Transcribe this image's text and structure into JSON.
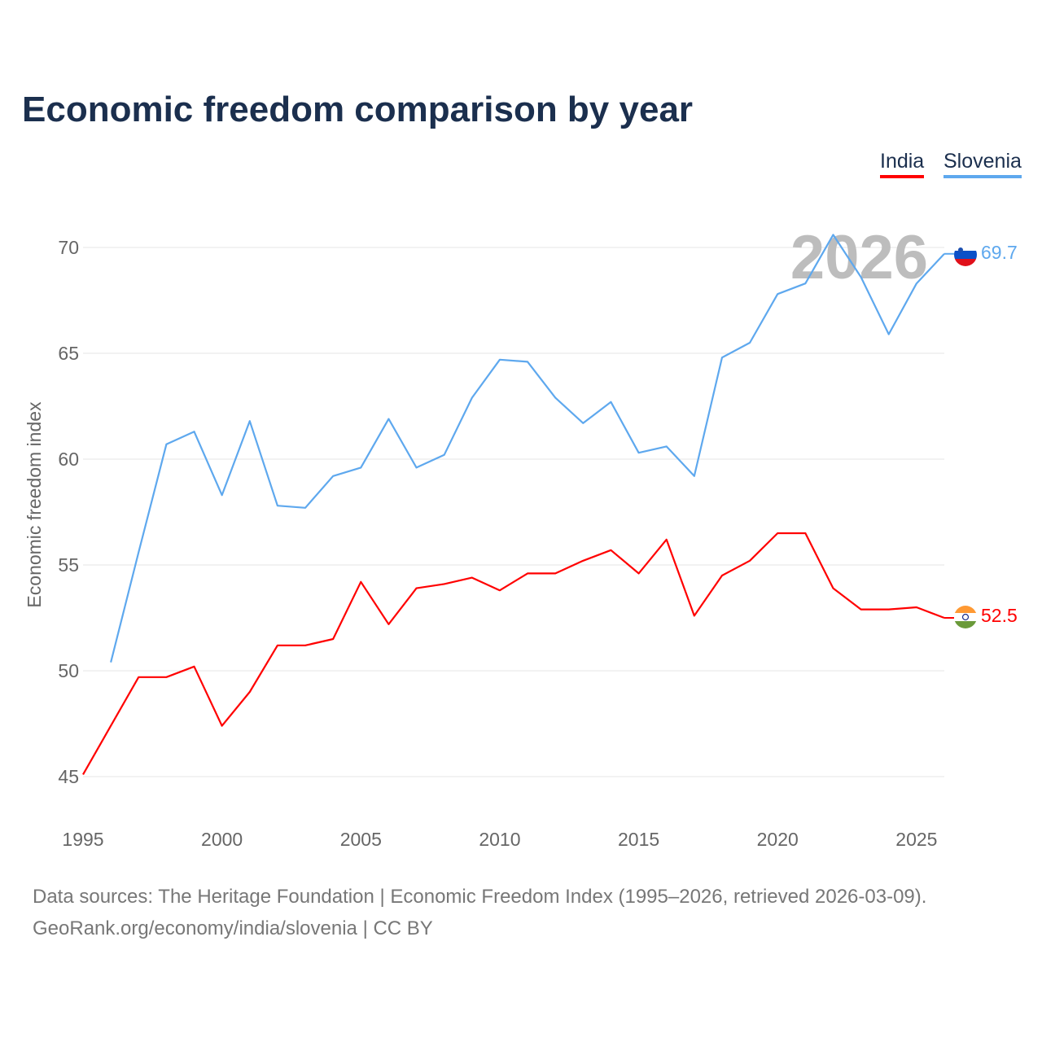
{
  "title": "Economic freedom comparison by year",
  "footer": {
    "line1": "Data sources: The Heritage Foundation | Economic Freedom Index (1995–2026, retrieved 2026-03-09).",
    "line2": "GeoRank.org/economy/india/slovenia | CC BY"
  },
  "chart_data": {
    "type": "line",
    "title": "Economic freedom comparison by year",
    "xlabel": "",
    "ylabel": "Economic freedom index",
    "xlim": [
      1995,
      2026
    ],
    "ylim": [
      45,
      70
    ],
    "x_ticks": [
      "1995",
      "2000",
      "2005",
      "2010",
      "2015",
      "2020",
      "2025"
    ],
    "y_ticks": [
      "45",
      "50",
      "55",
      "60",
      "65",
      "70"
    ],
    "grid": true,
    "legend_position": "top-right",
    "watermark_year": "2026",
    "series": [
      {
        "name": "India",
        "color": "#ff0000",
        "end_label": "52.5",
        "x": [
          1995,
          1996,
          1997,
          1998,
          1999,
          2000,
          2001,
          2002,
          2003,
          2004,
          2005,
          2006,
          2007,
          2008,
          2009,
          2010,
          2011,
          2012,
          2013,
          2014,
          2015,
          2016,
          2017,
          2018,
          2019,
          2020,
          2021,
          2022,
          2023,
          2024,
          2025,
          2026
        ],
        "values": [
          45.1,
          47.4,
          49.7,
          49.7,
          50.2,
          47.4,
          49.0,
          51.2,
          51.2,
          51.5,
          54.2,
          52.2,
          53.9,
          54.1,
          54.4,
          53.8,
          54.6,
          54.6,
          55.2,
          55.7,
          54.6,
          56.2,
          52.6,
          54.5,
          55.2,
          56.5,
          56.5,
          53.9,
          52.9,
          52.9,
          53.0,
          52.5
        ]
      },
      {
        "name": "Slovenia",
        "color": "#5ea8ee",
        "end_label": "69.7",
        "x": [
          1996,
          1997,
          1998,
          1999,
          2000,
          2001,
          2002,
          2003,
          2004,
          2005,
          2006,
          2007,
          2008,
          2009,
          2010,
          2011,
          2012,
          2013,
          2014,
          2015,
          2016,
          2017,
          2018,
          2019,
          2020,
          2021,
          2022,
          2023,
          2024,
          2025,
          2026
        ],
        "values": [
          50.4,
          55.6,
          60.7,
          61.3,
          58.3,
          61.8,
          57.8,
          57.7,
          59.2,
          59.6,
          61.9,
          59.6,
          60.2,
          62.9,
          64.7,
          64.6,
          62.9,
          61.7,
          62.7,
          60.3,
          60.6,
          59.2,
          64.8,
          65.5,
          67.8,
          68.3,
          70.6,
          68.6,
          65.9,
          68.3,
          69.7
        ]
      }
    ]
  }
}
